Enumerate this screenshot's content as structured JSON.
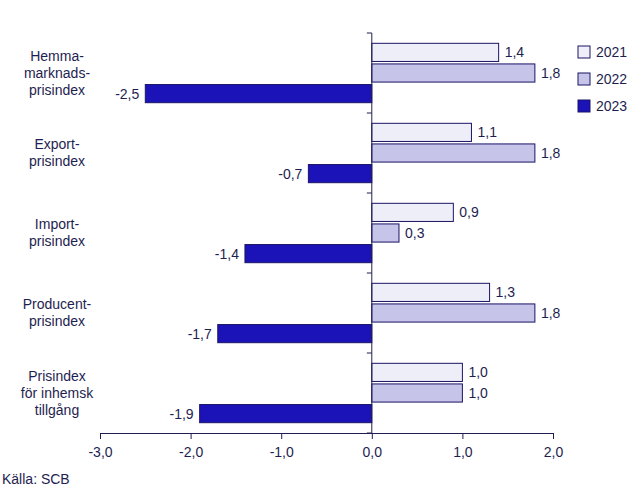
{
  "chart_data": {
    "type": "bar",
    "orientation": "horizontal",
    "categories": [
      "Hemma-\nmarknads-\nprisindex",
      "Export-\nprisindex",
      "Import-\nprisindex",
      "Producent-\nprisindex",
      "Prisindex\nför inhemsk\ntillgång"
    ],
    "series": [
      {
        "name": "2021",
        "color": "#eeeef9",
        "values": [
          1.4,
          1.1,
          0.9,
          1.3,
          1.0
        ],
        "value_labels": [
          "1,4",
          "1,1",
          "0,9",
          "1,3",
          "1,0"
        ]
      },
      {
        "name": "2022",
        "color": "#c6c4e8",
        "values": [
          1.8,
          1.8,
          0.3,
          1.8,
          1.0
        ],
        "value_labels": [
          "1,8",
          "1,8",
          "0,3",
          "1,8",
          "1,0"
        ]
      },
      {
        "name": "2023",
        "color": "#1b13b8",
        "values": [
          -2.5,
          -0.7,
          -1.4,
          -1.7,
          -1.9
        ],
        "value_labels": [
          "-2,5",
          "-0,7",
          "-1,4",
          "-1,7",
          "-1,9"
        ]
      }
    ],
    "xlim": [
      -3,
      2
    ],
    "xticks": [
      {
        "value": -3,
        "label": "-3,0"
      },
      {
        "value": -2,
        "label": "-2,0"
      },
      {
        "value": -1,
        "label": "-1,0"
      },
      {
        "value": 0,
        "label": "0,0"
      },
      {
        "value": 1,
        "label": "1,0"
      },
      {
        "value": 2,
        "label": "2,0"
      }
    ],
    "data_labels": true,
    "grid": false,
    "legend": "right",
    "source": "Källa: SCB"
  }
}
